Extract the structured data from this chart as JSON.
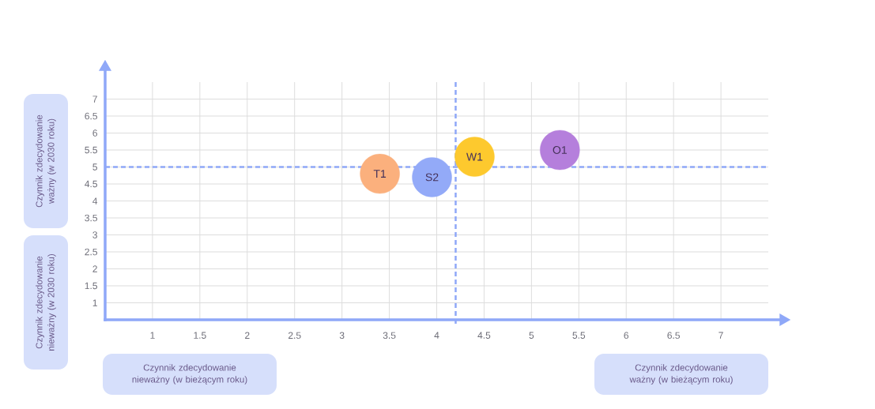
{
  "chart_data": {
    "type": "scatter",
    "annotations": [
      "Czynnik zdecydowanie nieważny (w bieżącym roku)",
      "Czynnik zdecydowanie ważny (w bieżącym roku)",
      "Czynnik zdecydowanie ważny (w 2030 roku)",
      "Czynnik zdecydowanie nieważny (w 2030 roku)",
      {
        "text": "T1",
        "x": 3.4,
        "y": 4.8
      },
      {
        "text": "S2",
        "x": 3.95,
        "y": 4.7
      },
      {
        "text": "W1",
        "x": 4.4,
        "y": 5.3
      },
      {
        "text": "O1",
        "x": 5.3,
        "y": 5.5
      }
    ],
    "xlim": [
      0.5,
      7.5
    ],
    "ylim": [
      0.5,
      7.5
    ],
    "xticks": [
      1,
      1.5,
      2,
      2.5,
      3,
      3.5,
      4,
      4.5,
      5,
      5.5,
      6,
      6.5,
      7
    ],
    "yticks": [
      1,
      1.5,
      2,
      2.5,
      3,
      3.5,
      4,
      4.5,
      5,
      5.5,
      6,
      6.5,
      7
    ],
    "grid": true,
    "marker": "circle",
    "x": [
      3.4,
      3.95,
      4.4,
      5.3
    ],
    "values": [
      4.8,
      4.7,
      5.3,
      5.5
    ],
    "colors": [
      "#fbb07d",
      "#93aaf8",
      "#fdc92e",
      "#b57fdc"
    ],
    "ref_lines": [
      {
        "axis": "x",
        "value": 4.2,
        "color": "#8fa8f8",
        "line_style": "dashed"
      },
      {
        "axis": "y",
        "value": 5,
        "color": "#8fa8f8",
        "line_style": "dashed"
      }
    ]
  }
}
